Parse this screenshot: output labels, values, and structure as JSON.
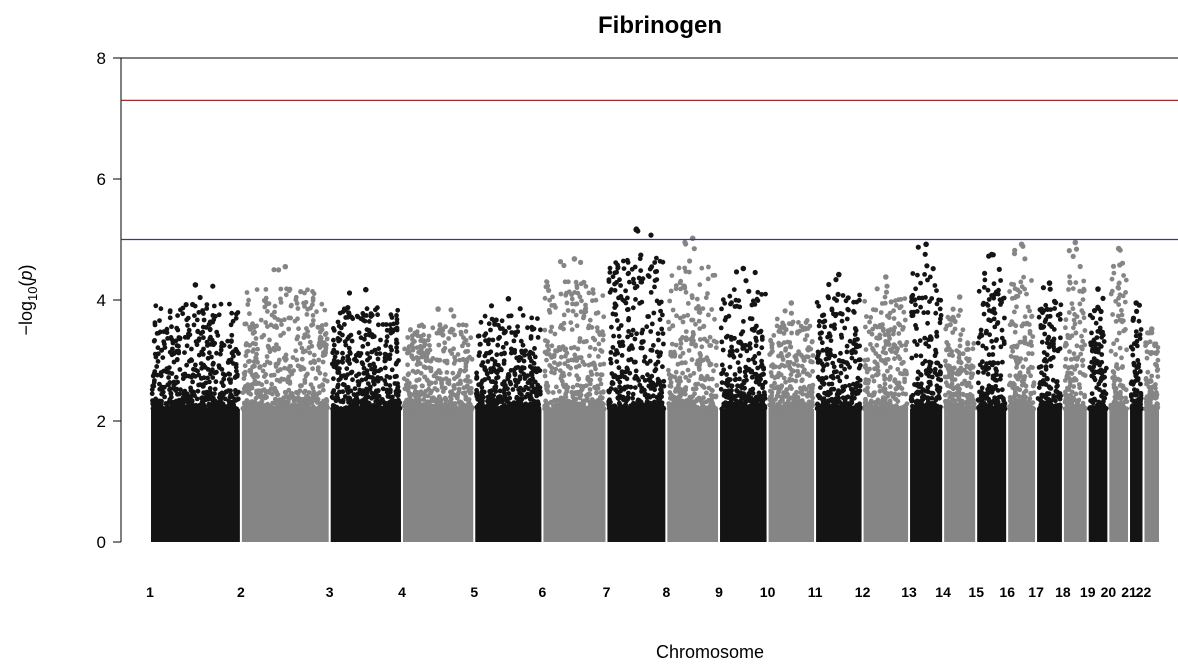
{
  "chart_data": {
    "type": "scatter",
    "title": "Fibrinogen",
    "xlabel": "Chromosome",
    "ylabel_prefix": "−log",
    "ylabel_sub": "10",
    "ylabel_var": "p",
    "ylim": [
      0,
      8
    ],
    "yticks": [
      "0",
      "2",
      "4",
      "6",
      "8"
    ],
    "grid": false,
    "colors": {
      "odd": "#141414",
      "even": "#858585"
    },
    "thresholds": [
      {
        "name": "genome-wide-significance",
        "value": 7.3,
        "color": "#a52a2a"
      },
      {
        "name": "suggestive",
        "value": 5.0,
        "color": "#2b3b9c"
      }
    ],
    "chromosomes": [
      {
        "label": "1",
        "start": 0,
        "end": 88,
        "peak": 4.25
      },
      {
        "label": "2",
        "start": 88,
        "end": 174,
        "peak": 4.55
      },
      {
        "label": "3",
        "start": 174,
        "end": 244,
        "peak": 4.17
      },
      {
        "label": "4",
        "start": 244,
        "end": 314,
        "peak": 3.85
      },
      {
        "label": "5",
        "start": 314,
        "end": 380,
        "peak": 4.02
      },
      {
        "label": "6",
        "start": 380,
        "end": 442,
        "peak": 4.68
      },
      {
        "label": "7",
        "start": 442,
        "end": 500,
        "peak": 5.17
      },
      {
        "label": "8",
        "start": 500,
        "end": 551,
        "peak": 5.02
      },
      {
        "label": "9",
        "start": 551,
        "end": 598,
        "peak": 4.52
      },
      {
        "label": "10",
        "start": 598,
        "end": 644,
        "peak": 3.95
      },
      {
        "label": "11",
        "start": 644,
        "end": 690,
        "peak": 4.42
      },
      {
        "label": "12",
        "start": 690,
        "end": 735,
        "peak": 4.38
      },
      {
        "label": "13",
        "start": 735,
        "end": 768,
        "peak": 4.92
      },
      {
        "label": "14",
        "start": 768,
        "end": 800,
        "peak": 4.05
      },
      {
        "label": "15",
        "start": 800,
        "end": 830,
        "peak": 4.75
      },
      {
        "label": "16",
        "start": 830,
        "end": 858,
        "peak": 4.92
      },
      {
        "label": "17",
        "start": 858,
        "end": 884,
        "peak": 4.28
      },
      {
        "label": "18",
        "start": 884,
        "end": 908,
        "peak": 4.95
      },
      {
        "label": "19",
        "start": 908,
        "end": 928,
        "peak": 4.18
      },
      {
        "label": "20",
        "start": 928,
        "end": 948,
        "peak": 4.85
      },
      {
        "label": "21",
        "start": 948,
        "end": 962,
        "peak": 3.95
      },
      {
        "label": "22",
        "start": 962,
        "end": 978,
        "peak": 3.52
      }
    ]
  }
}
